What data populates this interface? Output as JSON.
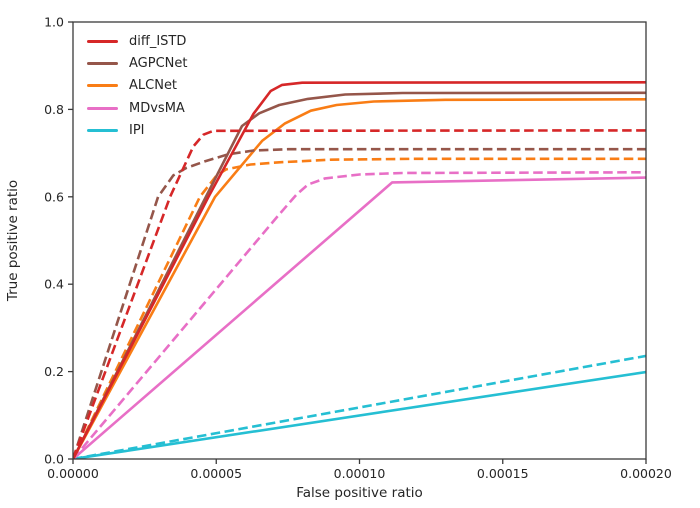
{
  "colors": {
    "axis": "#3a3a3a",
    "text": "#262626",
    "background": "#ffffff"
  },
  "chart_data": {
    "type": "line",
    "title": "",
    "xlabel": "False positive ratio",
    "ylabel": "True positive ratio",
    "xlim": [
      0,
      0.0002
    ],
    "ylim": [
      0,
      1.0
    ],
    "grid": false,
    "legend_position": "upper left",
    "x_tick_values": [
      0,
      5e-05,
      0.0001,
      0.00015,
      0.0002
    ],
    "x_tick_labels": [
      "0.00000",
      "0.00005",
      "0.00010",
      "0.00015",
      "0.00020"
    ],
    "y_tick_values": [
      0,
      0.2,
      0.4,
      0.6,
      0.8,
      1.0
    ],
    "y_tick_labels": [
      "0.0",
      "0.2",
      "0.4",
      "0.6",
      "0.8",
      "1.0"
    ],
    "legend": [
      {
        "label": "diff_ISTD",
        "color": "#d62728"
      },
      {
        "label": "AGPCNet",
        "color": "#95564a"
      },
      {
        "label": "ALCNet",
        "color": "#f97d15"
      },
      {
        "label": "MDvsMA",
        "color": "#e86fc6"
      },
      {
        "label": "IPI",
        "color": "#25bfd3"
      }
    ],
    "series": [
      {
        "name": "IPI",
        "style": "dashed",
        "color": "#25bfd3",
        "points": [
          [
            0,
            0
          ],
          [
            0.0002,
            0.236
          ]
        ]
      },
      {
        "name": "IPI",
        "style": "solid",
        "color": "#25bfd3",
        "points": [
          [
            0,
            0
          ],
          [
            0.0002,
            0.199
          ]
        ]
      },
      {
        "name": "MDvsMA",
        "style": "dashed",
        "color": "#e86fc6",
        "points": [
          [
            0,
            0
          ],
          [
            7.2e-05,
            0.56
          ],
          [
            7.8e-05,
            0.605
          ],
          [
            8.2e-05,
            0.628
          ],
          [
            8.8e-05,
            0.642
          ],
          [
            0.0001,
            0.651
          ],
          [
            0.000115,
            0.6545
          ],
          [
            0.0002,
            0.656
          ]
        ]
      },
      {
        "name": "MDvsMA",
        "style": "solid",
        "color": "#e86fc6",
        "points": [
          [
            0,
            0
          ],
          [
            0.0001114,
            0.633
          ],
          [
            0.0002,
            0.644
          ]
        ]
      },
      {
        "name": "ALCNet",
        "style": "dashed",
        "color": "#f97d15",
        "points": [
          [
            0,
            0
          ],
          [
            4.43e-05,
            0.6
          ],
          [
            5e-05,
            0.648
          ],
          [
            5.35e-05,
            0.663
          ],
          [
            6.2e-05,
            0.674
          ],
          [
            7.2e-05,
            0.679
          ],
          [
            9e-05,
            0.685
          ],
          [
            0.00012,
            0.687
          ],
          [
            0.0002,
            0.687
          ]
        ]
      },
      {
        "name": "ALCNet",
        "style": "solid",
        "color": "#f97d15",
        "points": [
          [
            0,
            0
          ],
          [
            4.96e-05,
            0.6
          ],
          [
            6.6e-05,
            0.728
          ],
          [
            7.4e-05,
            0.768
          ],
          [
            8.3e-05,
            0.797
          ],
          [
            9.2e-05,
            0.81
          ],
          [
            0.000105,
            0.818
          ],
          [
            0.00013,
            0.822
          ],
          [
            0.0002,
            0.823
          ]
        ]
      },
      {
        "name": "AGPCNet",
        "style": "dashed",
        "color": "#95564a",
        "points": [
          [
            0,
            0
          ],
          [
            2.97e-05,
            0.6
          ],
          [
            3.5e-05,
            0.649
          ],
          [
            3.95e-05,
            0.666
          ],
          [
            4.6e-05,
            0.681
          ],
          [
            5.4e-05,
            0.697
          ],
          [
            6.3e-05,
            0.706
          ],
          [
            7.5e-05,
            0.709
          ],
          [
            0.0002,
            0.709
          ]
        ]
      },
      {
        "name": "AGPCNet",
        "style": "solid",
        "color": "#95564a",
        "points": [
          [
            0,
            0
          ],
          [
            4.64e-05,
            0.6
          ],
          [
            5.9e-05,
            0.762
          ],
          [
            6.5e-05,
            0.791
          ],
          [
            7.2e-05,
            0.81
          ],
          [
            8.2e-05,
            0.824
          ],
          [
            9.5e-05,
            0.834
          ],
          [
            0.000115,
            0.8375
          ],
          [
            0.0002,
            0.838
          ]
        ]
      },
      {
        "name": "diff_ISTD",
        "style": "dashed",
        "color": "#d62728",
        "points": [
          [
            0,
            0
          ],
          [
            3.39e-05,
            0.6
          ],
          [
            4.2e-05,
            0.715
          ],
          [
            4.55e-05,
            0.742
          ],
          [
            4.9e-05,
            0.751
          ],
          [
            0.0002,
            0.752
          ]
        ]
      },
      {
        "name": "diff_ISTD",
        "style": "solid",
        "color": "#d62728",
        "points": [
          [
            0,
            0
          ],
          [
            4.73e-05,
            0.6
          ],
          [
            6.3e-05,
            0.79
          ],
          [
            6.9e-05,
            0.842
          ],
          [
            7.3e-05,
            0.856
          ],
          [
            8e-05,
            0.861
          ],
          [
            0.0002,
            0.862
          ]
        ]
      }
    ]
  }
}
